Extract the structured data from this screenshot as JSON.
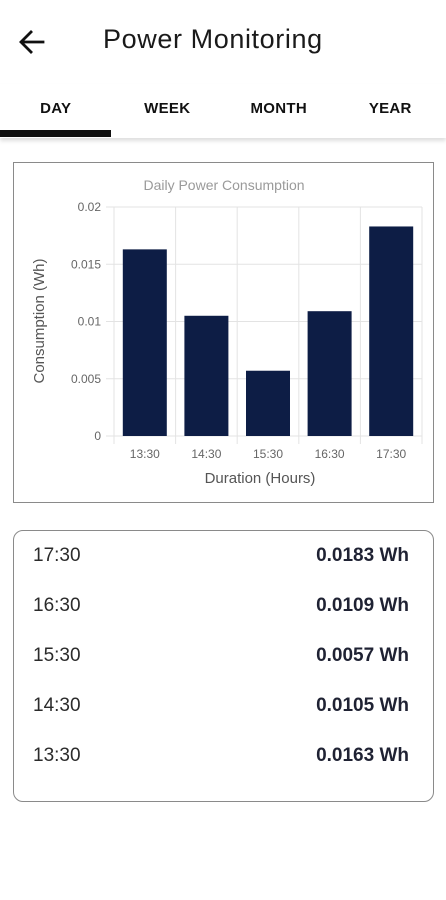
{
  "header": {
    "title": "Power Monitoring",
    "back_icon": "arrow-left-icon"
  },
  "tabs": [
    {
      "label": "DAY",
      "selected": true
    },
    {
      "label": "WEEK",
      "selected": false
    },
    {
      "label": "MONTH",
      "selected": false
    },
    {
      "label": "YEAR",
      "selected": false
    }
  ],
  "chart_data": {
    "type": "bar",
    "title": "Daily Power Consumption",
    "xlabel": "Duration (Hours)",
    "ylabel": "Consumption (Wh)",
    "categories": [
      "13:30",
      "14:30",
      "15:30",
      "16:30",
      "17:30"
    ],
    "values": [
      0.0163,
      0.0105,
      0.0057,
      0.0109,
      0.0183
    ],
    "ylim": [
      0,
      0.02
    ],
    "yticks": [
      "0",
      "0.005",
      "0.01",
      "0.015",
      "0.02"
    ],
    "grid": true,
    "legend": "none",
    "bar_color": "#0d1d45"
  },
  "readings": [
    {
      "time": "17:30",
      "value": "0.0183 Wh"
    },
    {
      "time": "16:30",
      "value": "0.0109 Wh"
    },
    {
      "time": "15:30",
      "value": "0.0057 Wh"
    },
    {
      "time": "14:30",
      "value": "0.0105 Wh"
    },
    {
      "time": "13:30",
      "value": "0.0163 Wh"
    }
  ]
}
